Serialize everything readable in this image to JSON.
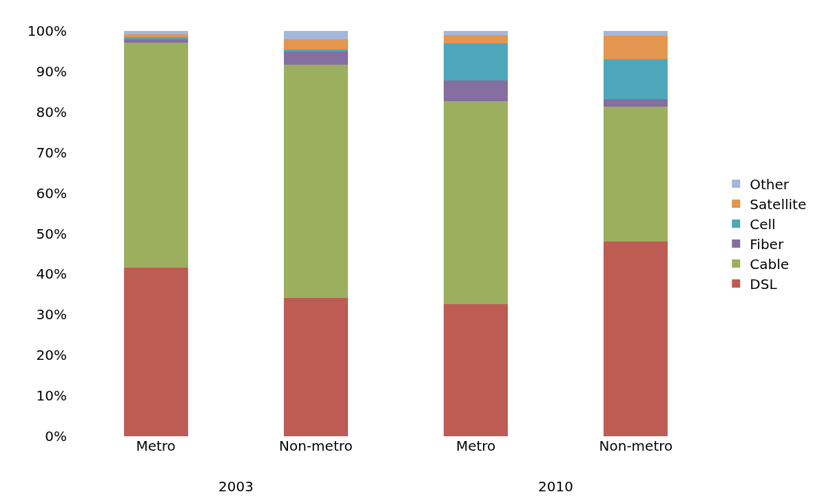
{
  "chart_data": {
    "type": "bar",
    "stacked": true,
    "categories": [
      "Metro",
      "Non-metro",
      "Metro",
      "Non-metro"
    ],
    "series": [
      {
        "name": "DSL",
        "color": "#bc5c52",
        "values": [
          41.6,
          34.1,
          32.6,
          48.0
        ]
      },
      {
        "name": "Cable",
        "color": "#9caf5f",
        "values": [
          55.5,
          57.6,
          50.0,
          33.3
        ]
      },
      {
        "name": "Fiber",
        "color": "#856ea0",
        "values": [
          0.8,
          3.2,
          5.2,
          1.9
        ]
      },
      {
        "name": "Cell",
        "color": "#4ea7bb",
        "values": [
          0.6,
          0.5,
          9.1,
          9.9
        ]
      },
      {
        "name": "Satellite",
        "color": "#e3964f",
        "values": [
          0.7,
          2.5,
          2.1,
          5.7
        ]
      },
      {
        "name": "Other",
        "color": "#a4b7d8",
        "values": [
          0.8,
          2.1,
          1.0,
          1.2
        ]
      }
    ],
    "ylim": [
      0,
      100
    ],
    "yticks": [
      {
        "value": 0,
        "label": "0%"
      },
      {
        "value": 10,
        "label": "10%"
      },
      {
        "value": 20,
        "label": "20%"
      },
      {
        "value": 30,
        "label": "30%"
      },
      {
        "value": 40,
        "label": "40%"
      },
      {
        "value": 50,
        "label": "50%"
      },
      {
        "value": 60,
        "label": "60%"
      },
      {
        "value": 70,
        "label": "70%"
      },
      {
        "value": 80,
        "label": "80%"
      },
      {
        "value": 90,
        "label": "90%"
      },
      {
        "value": 100,
        "label": "100%"
      }
    ],
    "annotations": [
      "2003",
      "2010"
    ],
    "legend": "right"
  }
}
